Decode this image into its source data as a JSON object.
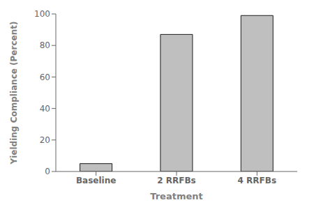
{
  "chart_data": {
    "type": "bar",
    "categories": [
      "Baseline",
      "2 RRFBs",
      "4 RRFBs"
    ],
    "values": [
      5.0,
      87.0,
      99.0
    ],
    "color": "#BFBFBF",
    "xlabel": "Treatment",
    "ylabel": "Yielding Compliance (Percent)",
    "ylim": [
      0,
      100
    ],
    "yticks": [
      0,
      20,
      40,
      60,
      80,
      100
    ],
    "grid": false
  }
}
